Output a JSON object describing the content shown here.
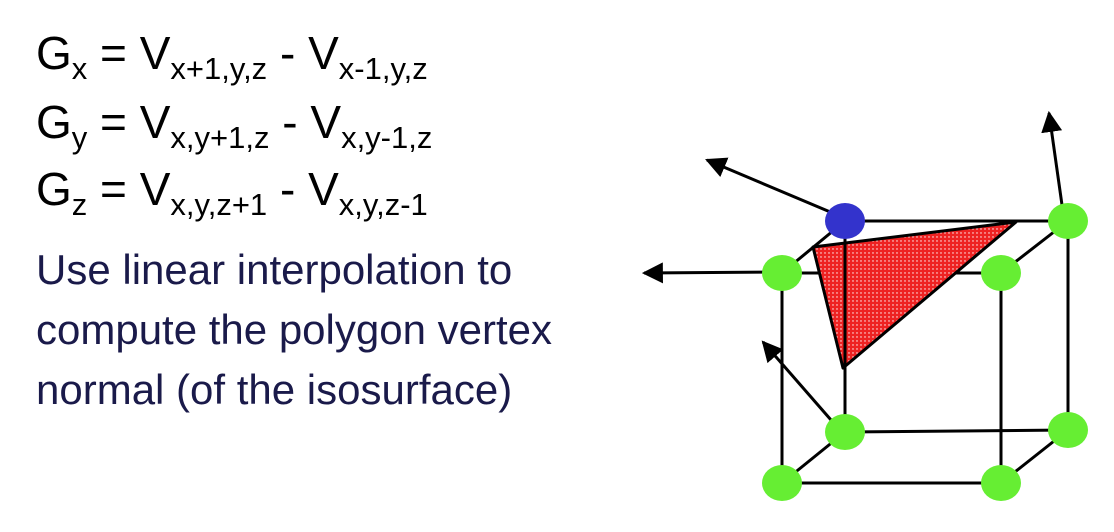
{
  "equations": [
    {
      "lhs": "G",
      "lhs_sub": "x",
      "eq": " = ",
      "v1": "V",
      "v1_sub": "x+1,y,z",
      "op": " - ",
      "v2": "V",
      "v2_sub": "x-1,y,z"
    },
    {
      "lhs": "G",
      "lhs_sub": "y",
      "eq": " = ",
      "v1": "V",
      "v1_sub": "x,y+1,z",
      "op": " - ",
      "v2": "V",
      "v2_sub": "x,y-1,z"
    },
    {
      "lhs": "G",
      "lhs_sub": "z",
      "eq": " = ",
      "v1": "V",
      "v1_sub": "x,y,z+1",
      "op": " - ",
      "v2": "V",
      "v2_sub": "x,y,z-1"
    }
  ],
  "caption": {
    "lines": [
      "Use linear interpolation to",
      "compute the polygon vertex",
      "normal (of the isosurface)"
    ],
    "color": "#1a1a4a"
  },
  "diagram": {
    "vertex_color_active": "#3333cc",
    "vertex_color_inactive": "#66ee33",
    "triangle_fill": "#ee2222",
    "edge_color": "#000000",
    "arrow_color": "#000000"
  }
}
